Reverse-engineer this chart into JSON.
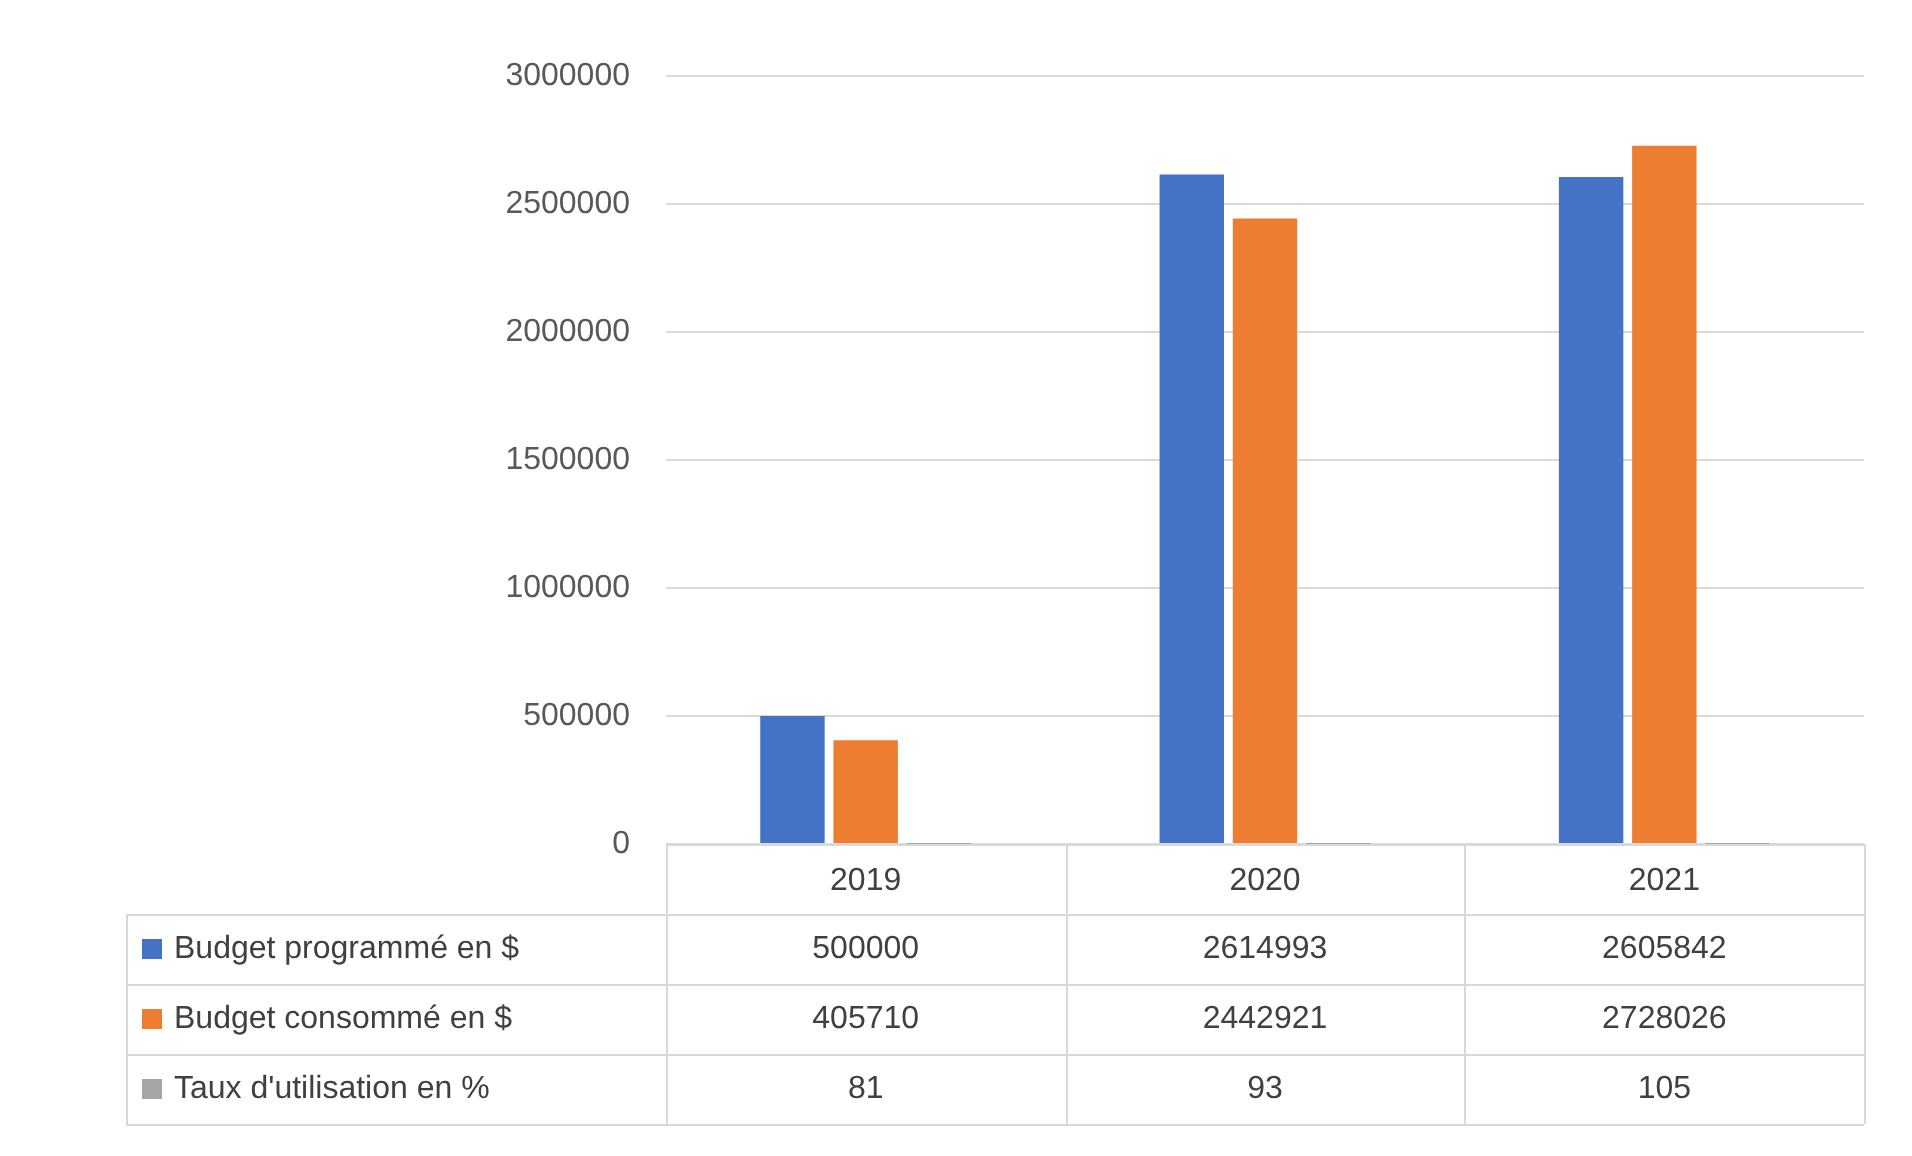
{
  "chart_data": {
    "type": "bar",
    "categories": [
      "2019",
      "2020",
      "2021"
    ],
    "series": [
      {
        "name": "Budget programmé en $",
        "color": "#4472c4",
        "values": [
          500000,
          2614993,
          2605842
        ]
      },
      {
        "name": "Budget consommé en $",
        "color": "#ed7d31",
        "values": [
          405710,
          2442921,
          2728026
        ]
      },
      {
        "name": "Taux d'utilisation en %",
        "color": "#a5a5a5",
        "values": [
          81,
          93,
          105
        ]
      }
    ],
    "ylim": [
      0,
      3000000
    ],
    "yticks": [
      0,
      500000,
      1000000,
      1500000,
      2000000,
      2500000,
      3000000
    ],
    "grid": "y",
    "legend": "bottom",
    "data_labels": true
  }
}
